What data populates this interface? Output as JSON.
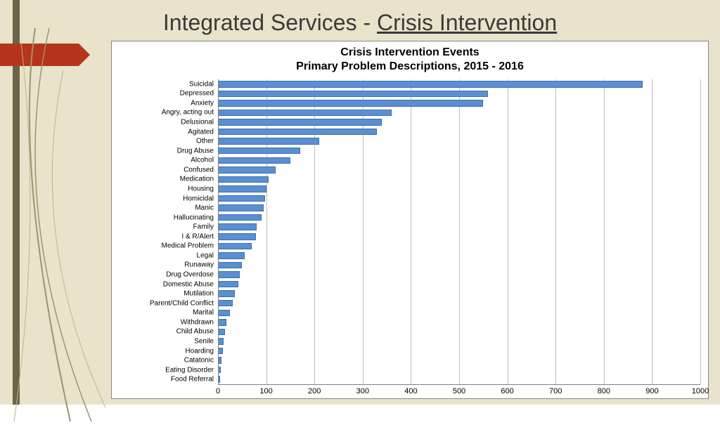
{
  "slide": {
    "title_plain": "Integrated Services - ",
    "title_underline": "Crisis Intervention",
    "bg_color": "#e8e3ca",
    "stripe_color": "#6d6347",
    "arrow_color": "#b6341c"
  },
  "chart": {
    "type": "bar-horizontal",
    "title_line1": "Crisis Intervention Events",
    "title_line2": "Primary Problem Descriptions, 2015 - 2016",
    "title_fontsize": 16,
    "background_color": "#ffffff",
    "border_color": "#888888",
    "grid_color": "#bfbfbf",
    "bar_color": "#5b8fd1",
    "bar_border_color": "#3b6fae",
    "label_fontsize": 10,
    "tick_fontsize": 11,
    "xlim": [
      0,
      1000
    ],
    "xtick_step": 100,
    "categories": [
      "Suicidal",
      "Depressed",
      "Anxiety",
      "Angry, acting out",
      "Delusional",
      "Agitated",
      "Other",
      "Drug Abuse",
      "Alcohol",
      "Confused",
      "Medication",
      "Housing",
      "Homicidal",
      "Manic",
      "Hallucinating",
      "Family",
      "I & R/Alert",
      "Medical Problem",
      "Legal",
      "Runaway",
      "Drug Overdose",
      "Domestic Abuse",
      "Mutilation",
      "Parent/Child Conflict",
      "Marital",
      "Withdrawn",
      "Child Abuse",
      "Senile",
      "Hoarding",
      "Catatonic",
      "Eating Disorder",
      "Food Referral"
    ],
    "values": [
      880,
      560,
      550,
      360,
      340,
      330,
      210,
      170,
      150,
      120,
      105,
      100,
      98,
      95,
      90,
      80,
      78,
      70,
      55,
      50,
      45,
      42,
      35,
      30,
      25,
      18,
      15,
      12,
      10,
      8,
      6,
      5
    ]
  }
}
